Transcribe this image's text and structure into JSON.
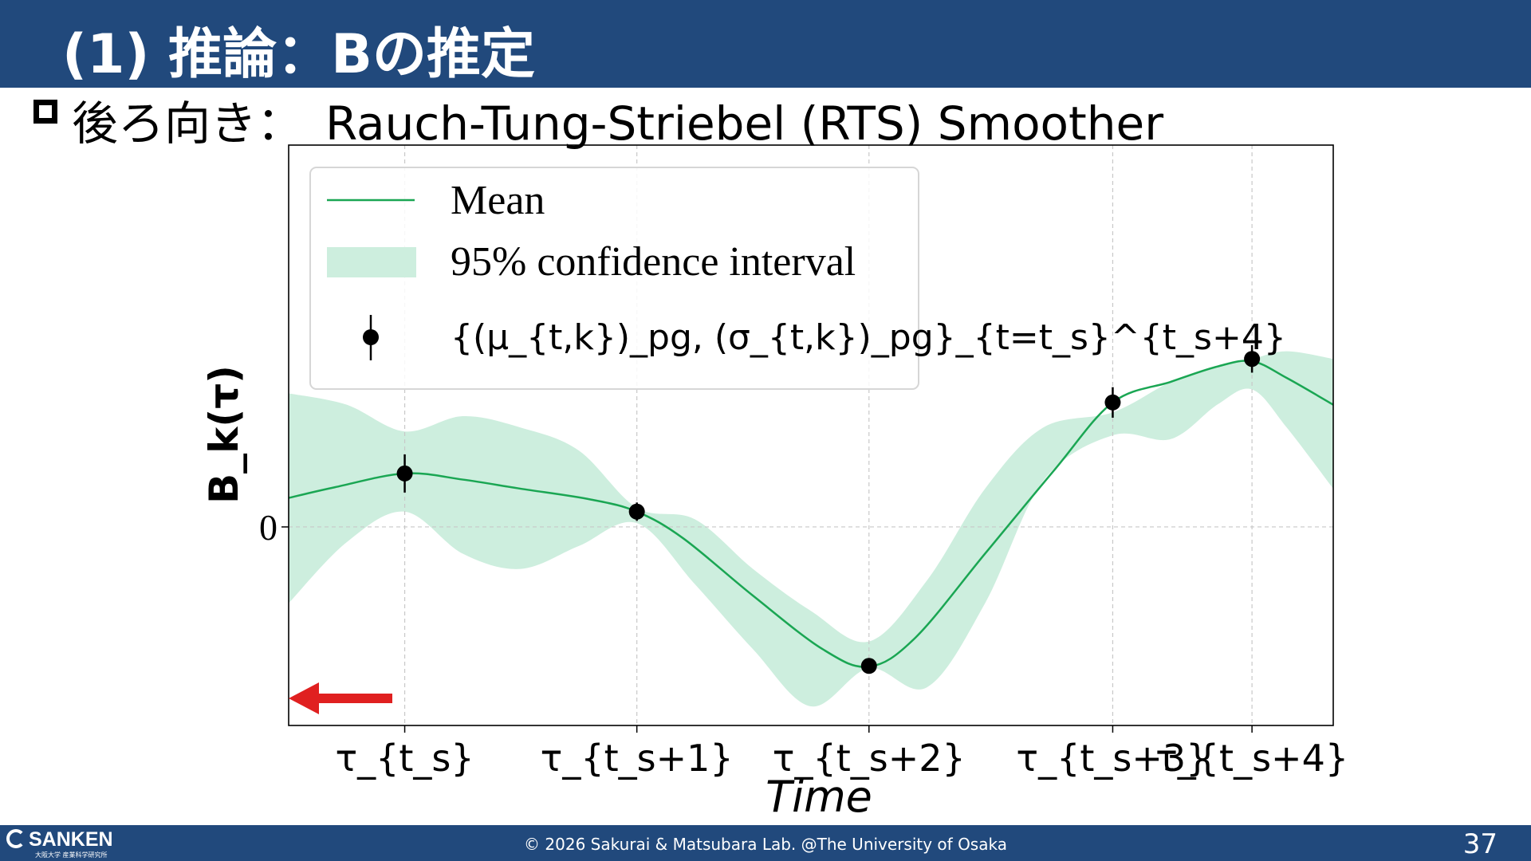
{
  "slide": {
    "title": "(1) 推論：Bの推定",
    "subtitle_jp": "後ろ向き：",
    "subtitle_en": "Rauch-Tung-Striebel (RTS) Smoother",
    "page_number": "37"
  },
  "footer": {
    "logo": "SANKEN",
    "logo_sub": "大阪大学 産業科学研究所",
    "copyright": "© 2026 Sakurai & Matsubara Lab. @The University of Osaka"
  },
  "chart_data": {
    "type": "line",
    "xlabel": "Time",
    "ylabel": "B_k(τ)",
    "xlim": [
      -0.5,
      4.0
    ],
    "ylim": [
      -2.6,
      5.0
    ],
    "x_ticks": [
      {
        "x": 0,
        "label": "τ_{t_s}"
      },
      {
        "x": 1,
        "label": "τ_{t_s+1}"
      },
      {
        "x": 2,
        "label": "τ_{t_s+2}"
      },
      {
        "x": 3.05,
        "label": "τ_{t_s+3}"
      },
      {
        "x": 3.65,
        "label": "τ_{t_s+4}"
      }
    ],
    "y_ticks": [
      {
        "y": 0,
        "label": "0"
      }
    ],
    "grid": true,
    "legend_position": "top-left",
    "colors": {
      "mean": "#1aa653",
      "band": "#cdeede",
      "points": "#000000",
      "arrow": "#e02020"
    },
    "series": [
      {
        "name": "Mean",
        "x": [
          -0.5,
          -0.3,
          0.0,
          0.25,
          0.5,
          0.8,
          1.0,
          1.2,
          1.5,
          1.8,
          2.0,
          2.2,
          2.5,
          2.8,
          3.05,
          3.3,
          3.5,
          3.65,
          3.8,
          4.0
        ],
        "y": [
          0.38,
          0.52,
          0.7,
          0.62,
          0.5,
          0.36,
          0.2,
          -0.15,
          -0.9,
          -1.6,
          -1.83,
          -1.45,
          -0.35,
          0.75,
          1.63,
          1.9,
          2.1,
          2.17,
          1.95,
          1.6
        ]
      },
      {
        "name": "95% confidence interval",
        "x": [
          -0.5,
          -0.25,
          0.0,
          0.25,
          0.5,
          0.75,
          1.0,
          1.25,
          1.5,
          1.75,
          2.0,
          2.25,
          2.5,
          2.75,
          3.05,
          3.3,
          3.5,
          3.65,
          3.8,
          4.0
        ],
        "upper": [
          1.75,
          1.6,
          1.25,
          1.45,
          1.3,
          1.0,
          0.25,
          0.1,
          -0.55,
          -1.1,
          -1.5,
          -0.7,
          0.5,
          1.3,
          1.5,
          1.9,
          2.1,
          2.2,
          2.3,
          2.2
        ],
        "lower": [
          -1.0,
          -0.2,
          0.2,
          -0.35,
          -0.55,
          -0.25,
          0.05,
          -0.75,
          -1.6,
          -2.35,
          -1.85,
          -2.1,
          -1.0,
          0.6,
          1.2,
          1.15,
          1.6,
          1.8,
          1.3,
          0.5
        ]
      },
      {
        "name": "{(μ_{t,k})_pg, (σ_{t,k})_pg}_{t=t_s}^{t_s+4}",
        "x": [
          0.0,
          1.0,
          2.0,
          3.05,
          3.65
        ],
        "y": [
          0.7,
          0.2,
          -1.82,
          1.63,
          2.2
        ],
        "err": [
          0.25,
          0.12,
          0.1,
          0.2,
          0.18
        ]
      }
    ],
    "legend": [
      {
        "label": "Mean"
      },
      {
        "label": "95% confidence interval"
      },
      {
        "label": "{(μ_{t,k})_pg, (σ_{t,k})_pg}_{t=t_s}^{t_s+4}"
      }
    ]
  }
}
